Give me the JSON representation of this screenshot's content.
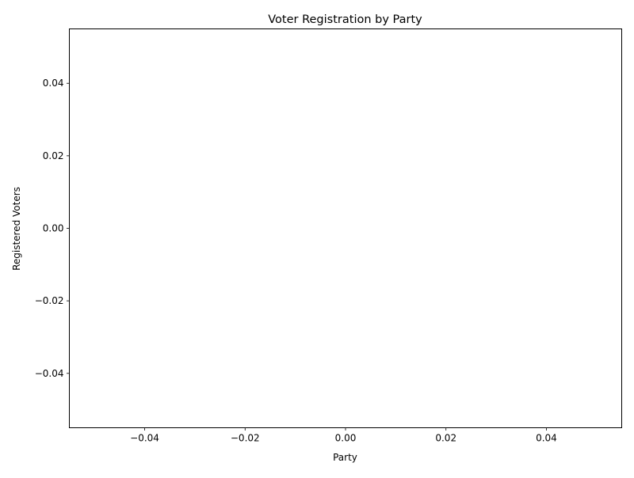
{
  "chart_data": {
    "type": "bar",
    "title": "Voter Registration by Party",
    "xlabel": "Party",
    "ylabel": "Registered Voters",
    "categories": [],
    "values": [],
    "xlim": [
      -0.055,
      0.055
    ],
    "ylim": [
      -0.055,
      0.055
    ],
    "xticks": [
      -0.04,
      -0.02,
      0.0,
      0.02,
      0.04
    ],
    "xtick_labels": [
      "−0.04",
      "−0.02",
      "0.00",
      "0.02",
      "0.04"
    ],
    "yticks": [
      -0.04,
      -0.02,
      0.0,
      0.02,
      0.04
    ],
    "ytick_labels": [
      "−0.04",
      "−0.02",
      "0.00",
      "0.02",
      "0.04"
    ],
    "grid": false,
    "legend": false
  }
}
